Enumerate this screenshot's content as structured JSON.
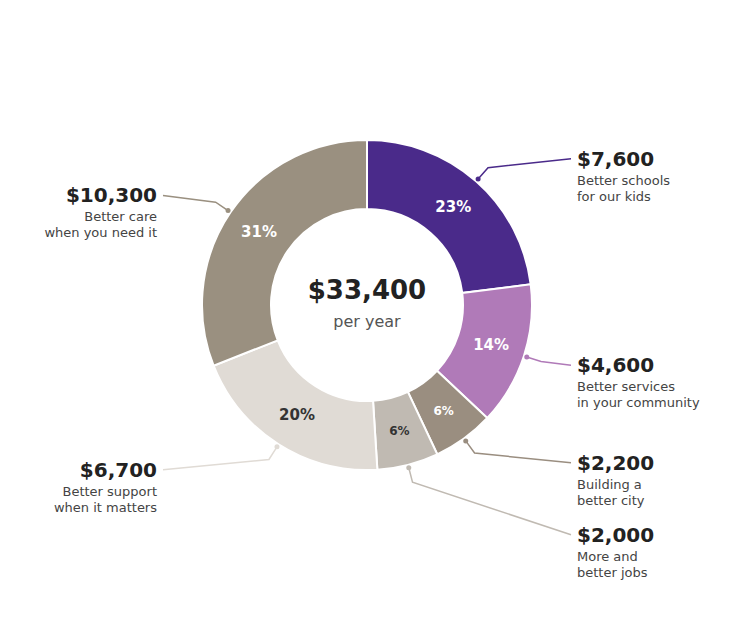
{
  "chart_data": {
    "type": "pie",
    "annotations": [
      "$33,400",
      "per year"
    ],
    "categories": [
      "Better schools\nfor our kids",
      "Better services\nin your community",
      "Building a\nbetter city",
      "More and\nbetter jobs",
      "Better support\nwhen it matters",
      "Better care\nwhen you need it"
    ],
    "amounts": [
      "$7,600",
      "$4,600",
      "$2,200",
      "$2,000",
      "$6,700",
      "$10,300"
    ],
    "values": [
      23,
      14,
      6,
      6,
      20,
      31
    ],
    "value_labels": [
      "23%",
      "14%",
      "6%",
      "6%",
      "20%",
      "31%"
    ],
    "data_labels": true,
    "colors": [
      "#4a2a8a",
      "#b07ab8",
      "#9a8e80",
      "#c0bab2",
      "#e0dbd5",
      "#9a9080"
    ]
  }
}
